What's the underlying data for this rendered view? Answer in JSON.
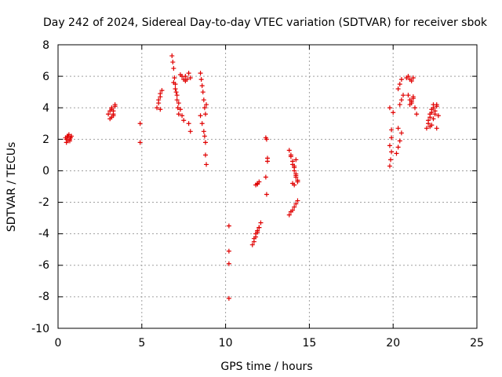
{
  "chart_data": {
    "type": "scatter",
    "title": "Day 242 of 2024, Sidereal Day-to-day VTEC variation (SDTVAR) for receiver sbok",
    "xlabel": "GPS time / hours",
    "ylabel": "SDTVAR / TECUs",
    "xlim": [
      0,
      25
    ],
    "ylim": [
      -10,
      8
    ],
    "xticks": [
      "0",
      "5",
      "10",
      "15",
      "20",
      "25"
    ],
    "yticks": [
      "8",
      "6",
      "4",
      "2",
      "0",
      "-2",
      "-4",
      "-6",
      "-8",
      "-10"
    ],
    "grid": true,
    "marker": "+",
    "color": "#e00000",
    "series": [
      {
        "name": "sbok",
        "x": [
          0.45,
          0.5,
          0.55,
          0.6,
          0.65,
          0.7,
          0.75,
          0.8,
          0.5,
          0.6,
          0.7,
          3.0,
          3.1,
          3.2,
          3.3,
          3.4,
          3.1,
          3.2,
          3.3,
          3.4,
          3.2,
          3.3,
          4.9,
          4.9,
          5.9,
          6.0,
          6.1,
          6.2,
          6.0,
          6.1,
          6.1,
          6.8,
          6.85,
          6.9,
          6.95,
          7.0,
          7.05,
          7.1,
          7.15,
          7.2,
          7.3,
          7.4,
          7.5,
          7.6,
          6.9,
          7.0,
          7.1,
          7.2,
          7.3,
          7.4,
          7.5,
          7.6,
          7.7,
          7.8,
          7.9,
          7.8,
          7.9,
          8.5,
          8.55,
          8.6,
          8.65,
          8.7,
          8.75,
          8.8,
          8.85,
          8.5,
          8.6,
          8.7,
          8.75,
          8.8,
          8.8,
          8.85,
          10.2,
          10.2,
          10.2,
          10.2,
          11.6,
          11.7,
          11.8,
          11.9,
          12.0,
          12.1,
          11.7,
          11.8,
          11.9,
          12.0,
          11.8,
          11.9,
          11.9,
          12.0,
          12.4,
          12.45,
          12.5,
          12.5,
          12.4,
          12.45,
          13.8,
          13.9,
          14.0,
          14.1,
          14.2,
          14.3,
          13.9,
          14.0,
          14.1,
          14.2,
          14.3,
          14.0,
          14.1,
          14.2,
          14.1,
          14.2,
          13.8,
          13.9,
          14.0,
          14.1,
          14.2,
          14.3,
          19.8,
          19.85,
          19.9,
          19.8,
          19.9,
          19.9,
          20.0,
          19.8,
          20.2,
          20.3,
          20.4,
          20.5,
          20.3,
          20.4,
          20.5,
          20.6,
          20.3,
          20.4,
          20.5,
          20.8,
          20.9,
          21.0,
          21.1,
          21.2,
          20.9,
          21.0,
          21.1,
          21.2,
          21.3,
          21.0,
          21.1,
          21.2,
          21.4,
          22.0,
          22.1,
          22.2,
          22.3,
          22.4,
          22.5,
          22.6,
          22.7,
          22.1,
          22.2,
          22.3,
          22.4,
          22.5,
          22.6,
          22.2,
          22.3,
          22.4,
          22.6
        ],
        "y": [
          2.1,
          2.0,
          2.2,
          1.9,
          2.3,
          2.0,
          2.1,
          2.2,
          1.8,
          2.2,
          1.9,
          3.6,
          3.8,
          4.0,
          3.5,
          4.1,
          3.3,
          3.9,
          3.6,
          4.2,
          3.4,
          3.8,
          3.0,
          1.8,
          4.0,
          4.5,
          4.9,
          5.1,
          4.3,
          3.9,
          4.7,
          7.3,
          6.9,
          6.5,
          5.9,
          5.5,
          5.0,
          4.5,
          4.0,
          3.6,
          6.1,
          6.0,
          5.8,
          5.7,
          5.6,
          5.2,
          4.8,
          4.3,
          3.9,
          3.5,
          3.2,
          6.0,
          5.8,
          3.0,
          2.5,
          6.2,
          5.9,
          6.2,
          5.8,
          5.4,
          5.0,
          4.5,
          4.0,
          3.6,
          4.2,
          3.5,
          3.0,
          2.5,
          2.2,
          1.8,
          1.0,
          0.4,
          -3.5,
          -5.1,
          -5.9,
          -8.1,
          -4.7,
          -4.3,
          -4.0,
          -3.8,
          -3.6,
          -3.3,
          -4.5,
          -4.2,
          -3.9,
          -3.6,
          -0.9,
          -0.8,
          -0.85,
          -0.7,
          2.1,
          2.0,
          0.8,
          0.6,
          -0.4,
          -1.5,
          1.3,
          0.9,
          0.4,
          0.0,
          -0.4,
          -0.7,
          1.0,
          0.6,
          0.2,
          -0.2,
          -0.6,
          -0.8,
          -0.9,
          0.7,
          0.3,
          -0.3,
          -2.8,
          -2.6,
          -2.5,
          -2.3,
          -2.1,
          -1.9,
          0.3,
          0.7,
          1.2,
          1.6,
          2.1,
          2.6,
          3.7,
          4.0,
          1.1,
          1.5,
          1.9,
          2.4,
          2.7,
          4.2,
          4.5,
          4.8,
          5.2,
          5.5,
          5.8,
          5.9,
          6.0,
          5.8,
          5.7,
          5.9,
          4.8,
          4.5,
          4.3,
          4.6,
          4.0,
          4.2,
          4.4,
          4.7,
          3.6,
          2.7,
          3.2,
          3.6,
          3.9,
          4.2,
          3.8,
          4.1,
          3.5,
          3.0,
          3.4,
          3.7,
          4.0,
          3.6,
          4.2,
          2.8,
          2.9,
          3.3,
          2.7
        ]
      }
    ]
  }
}
